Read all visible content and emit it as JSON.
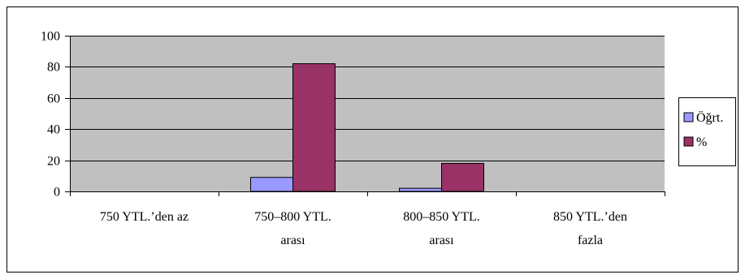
{
  "chart_data": {
    "type": "bar",
    "categories": [
      [
        "750 YTL.’den az"
      ],
      [
        "750–800 YTL.",
        "arası"
      ],
      [
        "800–850 YTL.",
        "arası"
      ],
      [
        "850 YTL.’den",
        "fazla"
      ]
    ],
    "series": [
      {
        "name": "Öğrt.",
        "color": "#9999ff",
        "values": [
          0,
          9,
          2,
          0
        ]
      },
      {
        "name": "%",
        "color": "#993366",
        "values": [
          0,
          82,
          18,
          0
        ]
      }
    ],
    "ylim": [
      0,
      100
    ],
    "yticks": [
      0,
      20,
      40,
      60,
      80,
      100
    ],
    "grid": true,
    "plot_background": "#c0c0c0",
    "legend_position": "right",
    "title": "",
    "xlabel": "",
    "ylabel": ""
  }
}
